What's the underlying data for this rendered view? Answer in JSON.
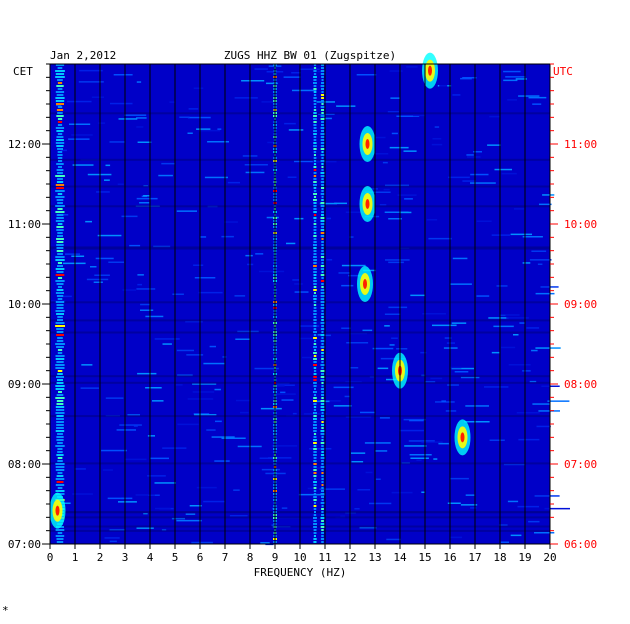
{
  "chart_data": {
    "type": "heatmap",
    "date": "Jan 2,2012",
    "station": "ZUGS HHZ BW 01 (Zugspitze)",
    "xlabel": "FREQUENCY (HZ)",
    "left_axis_label": "CET",
    "right_axis_label": "UTC",
    "xlim": [
      0,
      20
    ],
    "x_ticks": [
      "0",
      "1",
      "2",
      "3",
      "4",
      "5",
      "6",
      "7",
      "8",
      "9",
      "10",
      "11",
      "12",
      "13",
      "14",
      "15",
      "16",
      "17",
      "18",
      "19",
      "20"
    ],
    "y_ticks_cet": [
      "12:00",
      "11:00",
      "10:00",
      "09:00",
      "08:00",
      "07:00"
    ],
    "y_ticks_utc": [
      "11:00",
      "10:00",
      "09:00",
      "08:00",
      "07:00",
      "06:00"
    ],
    "time_range_cet": [
      "07:00",
      "13:00"
    ],
    "colors": {
      "background": "#0000c8",
      "grid": "#000000",
      "utc_text": "#ff0000",
      "cet_text": "#000000"
    },
    "bright_lines_hz": [
      0.4,
      9.0,
      10.6,
      10.9
    ],
    "hotspots": [
      {
        "freq": 12.7,
        "time_cet": "12:00"
      },
      {
        "freq": 12.7,
        "time_cet": "11:15"
      },
      {
        "freq": 12.6,
        "time_cet": "10:15"
      },
      {
        "freq": 14.0,
        "time_cet": "09:10"
      },
      {
        "freq": 15.2,
        "time_cet": "12:55"
      },
      {
        "freq": 16.5,
        "time_cet": "08:20"
      },
      {
        "freq": 0.3,
        "time_cet": "07:25"
      }
    ],
    "footer_mark": "*"
  }
}
